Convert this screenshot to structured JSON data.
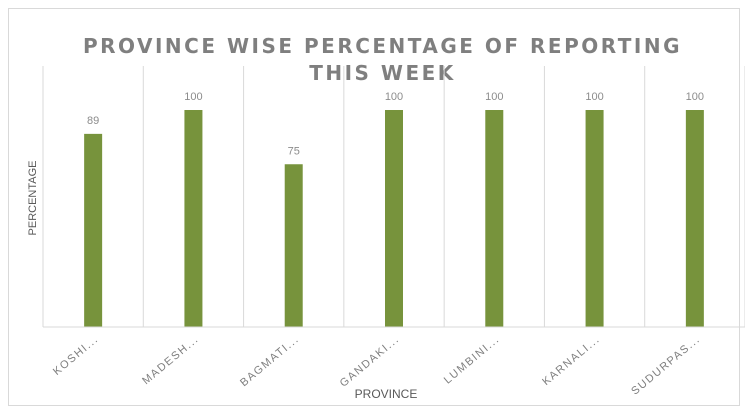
{
  "chart_data": {
    "type": "bar",
    "title": "PROVINCE  WISE  PERCENTAGE  OF  REPORTING\nTHIS WEEK",
    "xlabel": "PROVINCE",
    "ylabel": "PERCENTAGE",
    "categories": [
      "KOSHI...",
      "MADESH...",
      "BAGMATI...",
      "GANDAKI...",
      "LUMBINI...",
      "KARNALI...",
      "SUDURPAS..."
    ],
    "values": [
      89,
      100,
      75,
      100,
      100,
      100,
      100
    ],
    "data_labels": [
      "89",
      "100",
      "75",
      "100",
      "100",
      "100",
      "100"
    ],
    "ylim": [
      0,
      100
    ],
    "bar_color": "#77933c",
    "grid": "vertical category separators",
    "legend": "none"
  }
}
